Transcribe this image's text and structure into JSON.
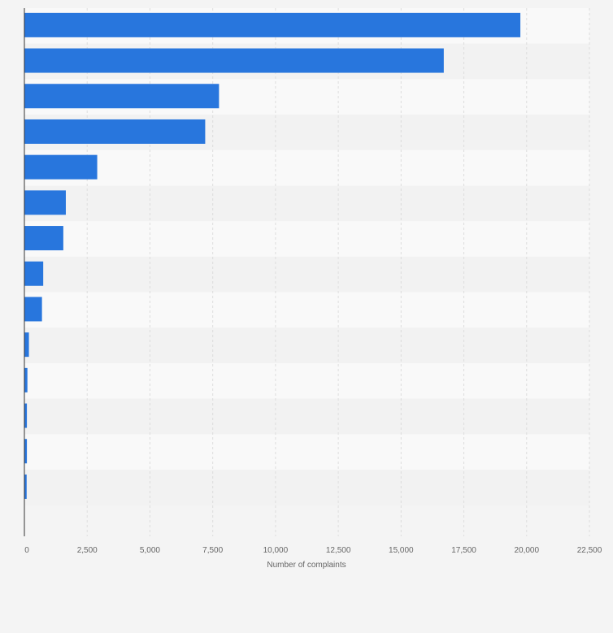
{
  "chart_data": {
    "type": "bar",
    "orientation": "horizontal",
    "title": "",
    "xlabel": "Number of complaints",
    "ylabel": "",
    "xlim": [
      0,
      22500
    ],
    "x_ticks": [
      0,
      2500,
      5000,
      7500,
      10000,
      12500,
      15000,
      17500,
      20000,
      22500
    ],
    "x_tick_labels": [
      "0",
      "2,500",
      "5,000",
      "7,500",
      "10,000",
      "12,500",
      "15,000",
      "17,500",
      "20,000",
      "22,500"
    ],
    "categories": [
      "",
      "",
      "",
      "",
      "",
      "",
      "",
      "",
      "",
      "",
      "",
      "",
      "",
      ""
    ],
    "values": [
      19750,
      16700,
      7750,
      7200,
      2900,
      1650,
      1550,
      750,
      700,
      180,
      120,
      100,
      100,
      90
    ],
    "grid": true,
    "legend": "none",
    "colors": {
      "bar": "#2876dd",
      "band_light": "#f9f9f9",
      "band_dark": "#f2f2f2",
      "grid": "#dddddd",
      "axis": "#333333",
      "background": "#f4f4f4"
    }
  }
}
